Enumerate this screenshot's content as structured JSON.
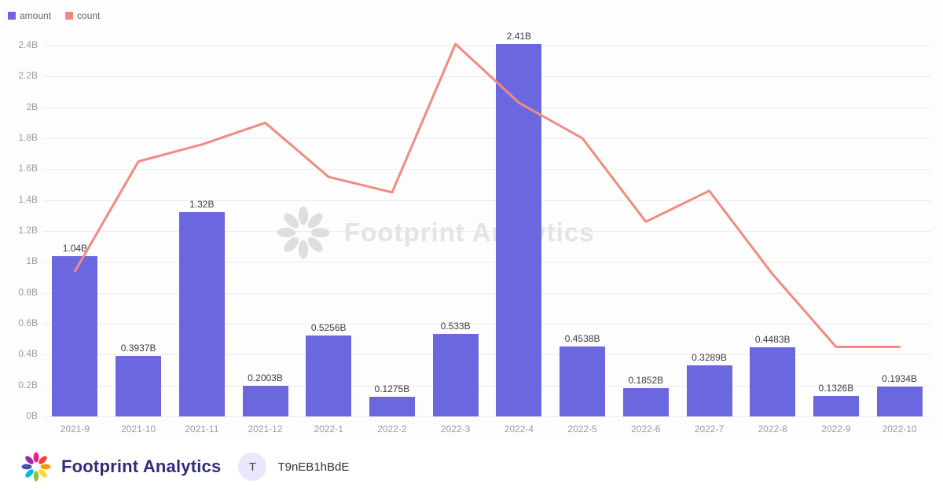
{
  "legend": {
    "items": [
      {
        "label": "amount",
        "color": "#6b68df"
      },
      {
        "label": "count",
        "color": "#f18b80"
      }
    ]
  },
  "watermark": {
    "text": "Footprint Analytics"
  },
  "footer": {
    "brand": "Footprint Analytics",
    "brand_color": "#302b7e",
    "avatar_letter": "T",
    "token": "T9nEB1hBdE"
  },
  "chart_data": {
    "type": "bar",
    "subtype": "bar+line combo",
    "categories": [
      "2021-9",
      "2021-10",
      "2021-11",
      "2021-12",
      "2022-1",
      "2022-2",
      "2022-3",
      "2022-4",
      "2022-5",
      "2022-6",
      "2022-7",
      "2022-8",
      "2022-9",
      "2022-10"
    ],
    "series": [
      {
        "name": "amount",
        "type": "bar",
        "color": "#6b68df",
        "values": [
          1.04,
          0.3937,
          1.32,
          0.2003,
          0.5256,
          0.1275,
          0.533,
          2.41,
          0.4538,
          0.1852,
          0.3289,
          0.4483,
          0.1326,
          0.1934
        ],
        "labels": [
          "1.04B",
          "0.3937B",
          "1.32B",
          "0.2003B",
          "0.5256B",
          "0.1275B",
          "0.533B",
          "2.41B",
          "0.4538B",
          "0.1852B",
          "0.3289B",
          "0.4483B",
          "0.1326B",
          "0.1934B"
        ]
      },
      {
        "name": "count",
        "type": "line",
        "color": "#f18b80",
        "approximate": true,
        "values": [
          0.94,
          1.65,
          1.76,
          1.9,
          1.55,
          1.45,
          2.41,
          2.03,
          1.8,
          1.26,
          1.46,
          0.92,
          0.45,
          0.45
        ]
      }
    ],
    "title": "",
    "xlabel": "",
    "ylabel": "",
    "ylim": [
      0,
      2.4
    ],
    "yticks": [
      "0B",
      "0.2B",
      "0.4B",
      "0.6B",
      "0.8B",
      "1B",
      "1.2B",
      "1.4B",
      "1.6B",
      "1.8B",
      "2B",
      "2.2B",
      "2.4B"
    ],
    "grid": true,
    "legend_position": "top-left"
  }
}
